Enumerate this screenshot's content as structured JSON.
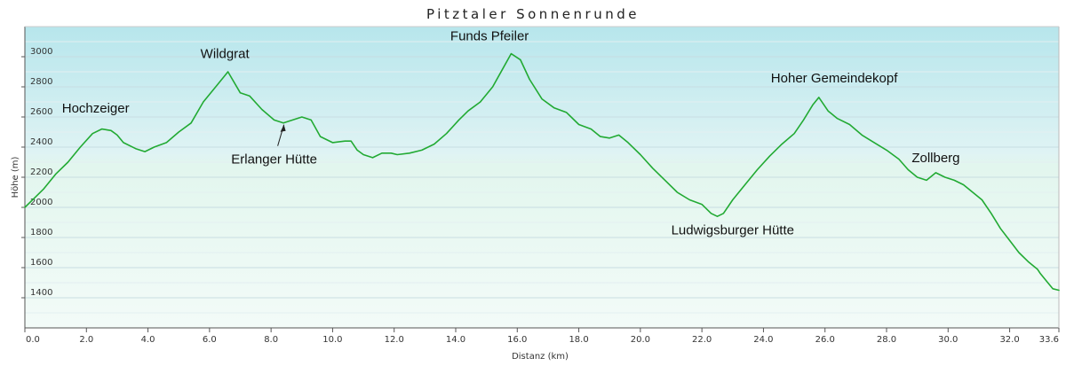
{
  "chart_data": {
    "type": "area",
    "title": "Pitztaler Sonnenrunde",
    "xlabel": "Distanz  (km)",
    "ylabel": "Höhe (m)",
    "xlim": [
      0,
      33.6
    ],
    "ylim": [
      1200,
      3200
    ],
    "grid": true,
    "x_ticks": [
      {
        "value": 0.0,
        "label": "0.0"
      },
      {
        "value": 2.0,
        "label": "2.0"
      },
      {
        "value": 4.0,
        "label": "4.0"
      },
      {
        "value": 6.0,
        "label": "6.0"
      },
      {
        "value": 8.0,
        "label": "8.0"
      },
      {
        "value": 10.0,
        "label": "10.0"
      },
      {
        "value": 12.0,
        "label": "12.0"
      },
      {
        "value": 14.0,
        "label": "14.0"
      },
      {
        "value": 16.0,
        "label": "16.0"
      },
      {
        "value": 18.0,
        "label": "18.0"
      },
      {
        "value": 20.0,
        "label": "20.0"
      },
      {
        "value": 22.0,
        "label": "22.0"
      },
      {
        "value": 24.0,
        "label": "24.0"
      },
      {
        "value": 26.0,
        "label": "26.0"
      },
      {
        "value": 28.0,
        "label": "28.0"
      },
      {
        "value": 30.0,
        "label": "30.0"
      },
      {
        "value": 32.0,
        "label": "32.0"
      },
      {
        "value": 33.6,
        "label": "33.6"
      }
    ],
    "y_ticks": [
      {
        "value": 1400,
        "label": "1400"
      },
      {
        "value": 1600,
        "label": "1600"
      },
      {
        "value": 1800,
        "label": "1800"
      },
      {
        "value": 2000,
        "label": "2000"
      },
      {
        "value": 2200,
        "label": "2200"
      },
      {
        "value": 2400,
        "label": "2400"
      },
      {
        "value": 2600,
        "label": "2600"
      },
      {
        "value": 2800,
        "label": "2800"
      },
      {
        "value": 3000,
        "label": "3000"
      }
    ],
    "series": [
      {
        "color": "#22aa33",
        "points": [
          [
            0.0,
            2000
          ],
          [
            0.3,
            2060
          ],
          [
            0.6,
            2120
          ],
          [
            1.0,
            2220
          ],
          [
            1.4,
            2300
          ],
          [
            1.8,
            2400
          ],
          [
            2.2,
            2490
          ],
          [
            2.5,
            2520
          ],
          [
            2.8,
            2510
          ],
          [
            3.0,
            2480
          ],
          [
            3.2,
            2430
          ],
          [
            3.6,
            2390
          ],
          [
            3.9,
            2370
          ],
          [
            4.2,
            2400
          ],
          [
            4.6,
            2430
          ],
          [
            5.0,
            2500
          ],
          [
            5.4,
            2560
          ],
          [
            5.8,
            2700
          ],
          [
            6.2,
            2800
          ],
          [
            6.6,
            2900
          ],
          [
            7.0,
            2760
          ],
          [
            7.3,
            2740
          ],
          [
            7.7,
            2650
          ],
          [
            8.1,
            2580
          ],
          [
            8.4,
            2560
          ],
          [
            8.7,
            2580
          ],
          [
            9.0,
            2600
          ],
          [
            9.3,
            2580
          ],
          [
            9.6,
            2470
          ],
          [
            10.0,
            2430
          ],
          [
            10.4,
            2440
          ],
          [
            10.6,
            2440
          ],
          [
            10.8,
            2380
          ],
          [
            11.0,
            2350
          ],
          [
            11.3,
            2330
          ],
          [
            11.6,
            2360
          ],
          [
            11.9,
            2360
          ],
          [
            12.1,
            2350
          ],
          [
            12.5,
            2360
          ],
          [
            12.9,
            2380
          ],
          [
            13.3,
            2420
          ],
          [
            13.7,
            2490
          ],
          [
            14.1,
            2580
          ],
          [
            14.4,
            2640
          ],
          [
            14.8,
            2700
          ],
          [
            15.2,
            2800
          ],
          [
            15.5,
            2910
          ],
          [
            15.8,
            3020
          ],
          [
            16.1,
            2980
          ],
          [
            16.4,
            2850
          ],
          [
            16.8,
            2720
          ],
          [
            17.2,
            2660
          ],
          [
            17.6,
            2630
          ],
          [
            18.0,
            2550
          ],
          [
            18.4,
            2520
          ],
          [
            18.7,
            2470
          ],
          [
            19.0,
            2460
          ],
          [
            19.3,
            2480
          ],
          [
            19.6,
            2430
          ],
          [
            20.0,
            2350
          ],
          [
            20.4,
            2260
          ],
          [
            20.8,
            2180
          ],
          [
            21.2,
            2100
          ],
          [
            21.6,
            2050
          ],
          [
            22.0,
            2020
          ],
          [
            22.3,
            1960
          ],
          [
            22.5,
            1940
          ],
          [
            22.7,
            1960
          ],
          [
            23.0,
            2050
          ],
          [
            23.4,
            2150
          ],
          [
            23.8,
            2250
          ],
          [
            24.2,
            2340
          ],
          [
            24.6,
            2420
          ],
          [
            25.0,
            2490
          ],
          [
            25.3,
            2580
          ],
          [
            25.6,
            2680
          ],
          [
            25.8,
            2730
          ],
          [
            26.1,
            2640
          ],
          [
            26.4,
            2590
          ],
          [
            26.8,
            2550
          ],
          [
            27.2,
            2480
          ],
          [
            27.6,
            2430
          ],
          [
            28.0,
            2380
          ],
          [
            28.4,
            2320
          ],
          [
            28.7,
            2250
          ],
          [
            29.0,
            2200
          ],
          [
            29.3,
            2180
          ],
          [
            29.6,
            2230
          ],
          [
            29.9,
            2200
          ],
          [
            30.2,
            2180
          ],
          [
            30.5,
            2150
          ],
          [
            30.8,
            2100
          ],
          [
            31.1,
            2050
          ],
          [
            31.4,
            1960
          ],
          [
            31.7,
            1860
          ],
          [
            32.0,
            1780
          ],
          [
            32.3,
            1700
          ],
          [
            32.6,
            1640
          ],
          [
            32.9,
            1590
          ],
          [
            33.0,
            1560
          ],
          [
            33.2,
            1510
          ],
          [
            33.4,
            1460
          ],
          [
            33.6,
            1450
          ]
        ]
      }
    ],
    "annotations": [
      {
        "text": "Hochzeiger",
        "x": 2.3,
        "y": 2630
      },
      {
        "text": "Wildgrat",
        "x": 6.5,
        "y": 2990
      },
      {
        "text": "Erlanger Hütte",
        "x": 8.1,
        "y": 2290
      },
      {
        "text": "Funds Pfeiler",
        "x": 15.1,
        "y": 3110
      },
      {
        "text": "Hoher Gemeindekopf",
        "x": 26.3,
        "y": 2830
      },
      {
        "text": "Zollberg",
        "x": 29.6,
        "y": 2300
      },
      {
        "text": "Ludwigsburger Hütte",
        "x": 23.0,
        "y": 1820
      }
    ]
  }
}
